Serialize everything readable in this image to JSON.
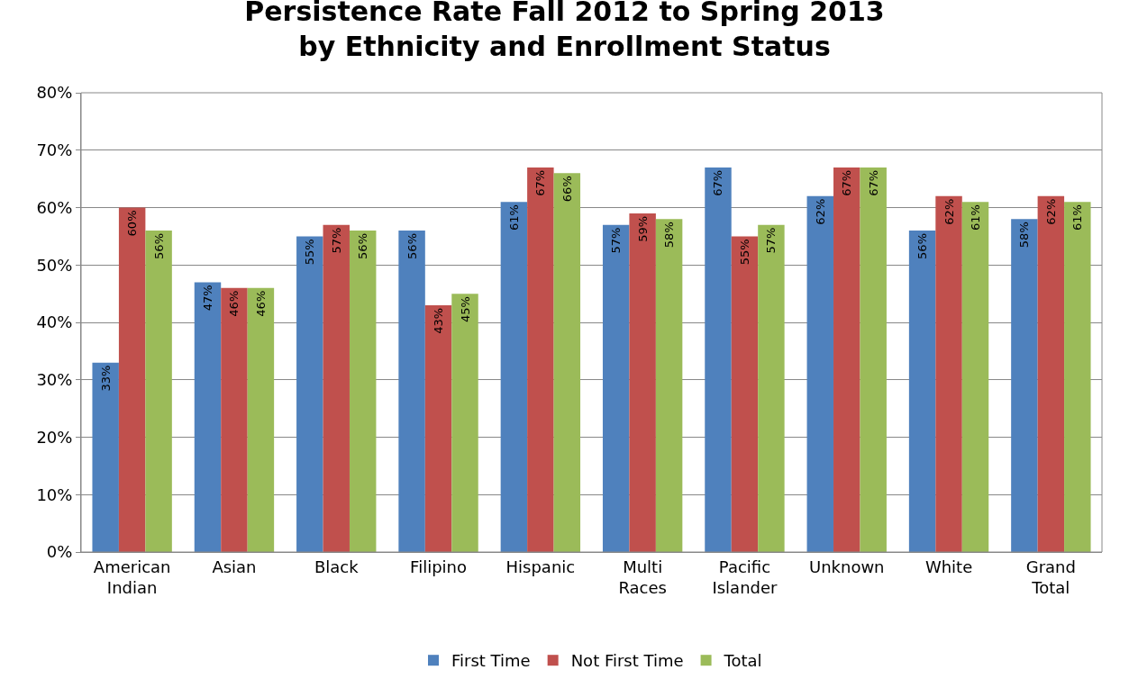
{
  "chart_data": {
    "type": "bar",
    "title": "Persistence Rate Fall 2012 to Spring 2013\nby Ethnicity and Enrollment Status",
    "categories": [
      "American Indian",
      "Asian",
      "Black",
      "Filipino",
      "Hispanic",
      "Multi Races",
      "Pacific Islander",
      "Unknown",
      "White",
      "Grand Total"
    ],
    "series": [
      {
        "name": "First Time",
        "color": "#4f81bd",
        "values": [
          33,
          47,
          55,
          56,
          61,
          57,
          67,
          62,
          56,
          58
        ],
        "value_labels": [
          "33%",
          "47%",
          "55%",
          "56%",
          "61%",
          "57%",
          "67%",
          "62%",
          "56%",
          "58%"
        ]
      },
      {
        "name": "Not First Time",
        "color": "#c0504d",
        "values": [
          60,
          46,
          57,
          43,
          67,
          59,
          55,
          67,
          62,
          62
        ],
        "value_labels": [
          "60%",
          "46%",
          "57%",
          "43%",
          "67%",
          "59%",
          "55%",
          "67%",
          "62%",
          "62%"
        ]
      },
      {
        "name": "Total",
        "color": "#9bbb59",
        "values": [
          56,
          46,
          56,
          45,
          66,
          58,
          57,
          67,
          61,
          61
        ],
        "value_labels": [
          "56%",
          "46%",
          "56%",
          "45%",
          "66%",
          "58%",
          "57%",
          "67%",
          "61%",
          "61%"
        ]
      }
    ],
    "ylim": [
      0,
      80
    ],
    "yticks": [
      {
        "value": 0,
        "label": "0%"
      },
      {
        "value": 10,
        "label": "10%"
      },
      {
        "value": 20,
        "label": "20%"
      },
      {
        "value": 30,
        "label": "30%"
      },
      {
        "value": 40,
        "label": "40%"
      },
      {
        "value": 50,
        "label": "50%"
      },
      {
        "value": 60,
        "label": "60%"
      },
      {
        "value": 70,
        "label": "70%"
      },
      {
        "value": 80,
        "label": "80%"
      }
    ],
    "grid": "y",
    "legend": "bottom"
  }
}
